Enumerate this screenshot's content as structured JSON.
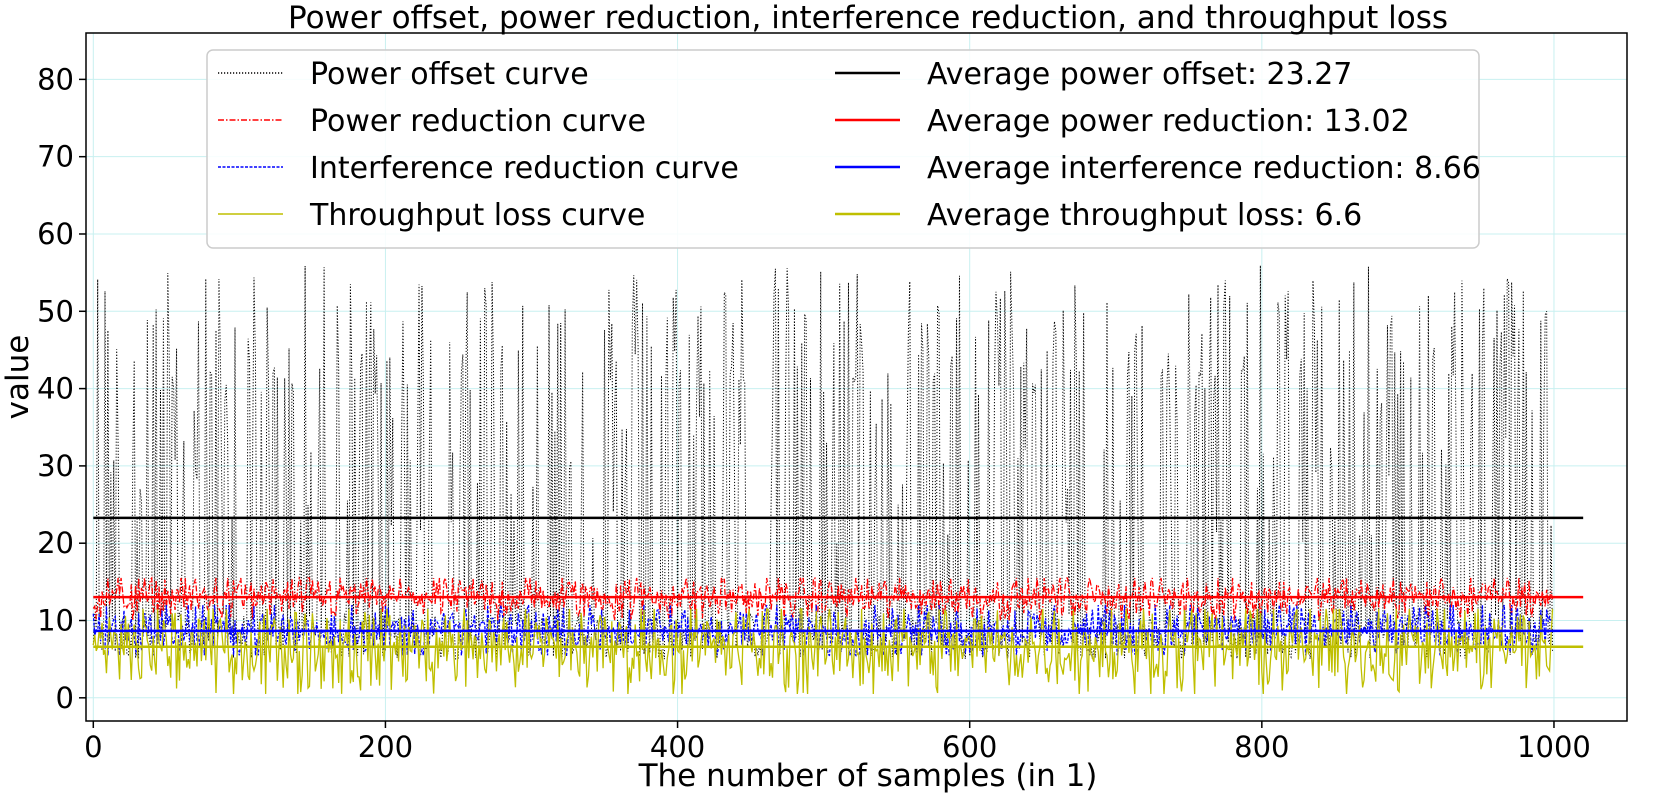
{
  "chart_data": {
    "type": "line",
    "title": "Power offset, power reduction, interference reduction, and throughput loss",
    "xlabel": "The number of samples (in 1)",
    "ylabel": "value",
    "xlim": [
      -5,
      1050
    ],
    "ylim": [
      -3,
      86
    ],
    "xticks": [
      0,
      200,
      400,
      600,
      800,
      1000
    ],
    "yticks": [
      0,
      10,
      20,
      30,
      40,
      50,
      60,
      70,
      80
    ],
    "grid": true,
    "grid_color": "#c8f0f0",
    "legend_position": "top",
    "n_samples": 1000,
    "series": [
      {
        "name": "Power offset curve",
        "color": "#000000",
        "style": "dotted",
        "mean": 23.27,
        "min": 5,
        "max": 56,
        "pattern": "spiky"
      },
      {
        "name": "Power reduction curve",
        "color": "#ff0000",
        "style": "dashdot",
        "mean": 13.02,
        "min": 10,
        "max": 15.5,
        "pattern": "noise"
      },
      {
        "name": "Interference reduction curve",
        "color": "#0000ff",
        "style": "dashed",
        "mean": 8.66,
        "min": 5.5,
        "max": 12,
        "pattern": "noise"
      },
      {
        "name": "Throughput loss curve",
        "color": "#bfbf00",
        "style": "solid",
        "mean": 6.6,
        "min": 0.5,
        "max": 11.5,
        "pattern": "noise"
      }
    ],
    "averages": [
      {
        "name": "Average power offset: 23.27",
        "value": 23.27,
        "color": "#000000"
      },
      {
        "name": "Average power reduction: 13.02",
        "value": 13.02,
        "color": "#ff0000"
      },
      {
        "name": "Average interference reduction: 8.66",
        "value": 8.66,
        "color": "#0000ff"
      },
      {
        "name": "Average throughput loss: 6.6",
        "value": 6.6,
        "color": "#bfbf00"
      }
    ],
    "average_line_xrange": [
      0,
      1020
    ]
  }
}
